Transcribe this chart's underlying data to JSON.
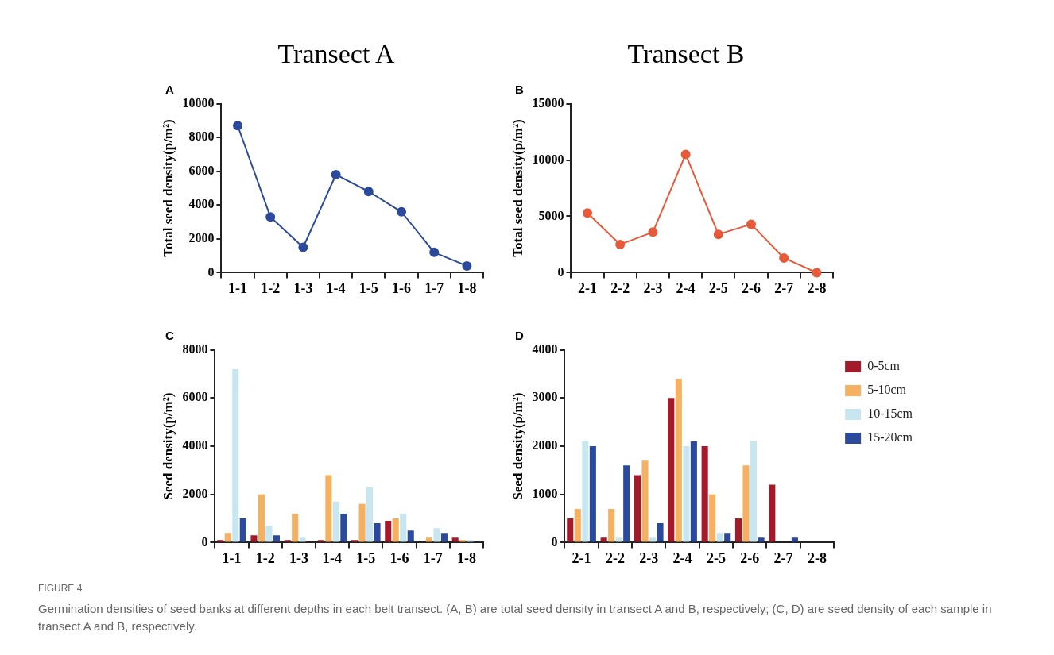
{
  "chart_data": [
    {
      "type": "line",
      "title": "Transect A",
      "annotations": [
        "A"
      ],
      "ylabel": "Total seed density(p/m²)",
      "categories": [
        "1-1",
        "1-2",
        "1-3",
        "1-4",
        "1-5",
        "1-6",
        "1-7",
        "1-8"
      ],
      "series": [
        {
          "color": "#2b4a9b",
          "values": [
            8700,
            3300,
            1500,
            5800,
            4800,
            3600,
            1200,
            400
          ]
        }
      ],
      "ylim": [
        0,
        10000
      ],
      "yticks": [
        0,
        2000,
        4000,
        6000,
        8000,
        10000
      ],
      "marker": "circle",
      "legend": false
    },
    {
      "type": "line",
      "title": "Transect B",
      "annotations": [
        "B"
      ],
      "ylabel": "Total seed density(p/m²)",
      "categories": [
        "2-1",
        "2-2",
        "2-3",
        "2-4",
        "2-5",
        "2-6",
        "2-7",
        "2-8"
      ],
      "series": [
        {
          "color": "#e8593a",
          "values": [
            5300,
            2500,
            3600,
            10500,
            3400,
            4300,
            1300,
            0
          ]
        }
      ],
      "ylim": [
        0,
        15000
      ],
      "yticks": [
        0,
        5000,
        10000,
        15000
      ],
      "marker": "circle",
      "legend": false
    },
    {
      "type": "bar",
      "annotations": [
        "C"
      ],
      "ylabel": "Seed density(p/m²)",
      "categories": [
        "1-1",
        "1-2",
        "1-3",
        "1-4",
        "1-5",
        "1-6",
        "1-7",
        "1-8"
      ],
      "series": [
        {
          "color": "#a31a2a",
          "values": [
            100,
            300,
            100,
            100,
            100,
            900,
            0,
            200
          ]
        },
        {
          "color": "#f5b061",
          "values": [
            400,
            2000,
            1200,
            2800,
            1600,
            1000,
            200,
            100
          ]
        },
        {
          "color": "#c8e6f0",
          "values": [
            7200,
            700,
            200,
            1700,
            2300,
            1200,
            600,
            100
          ]
        },
        {
          "color": "#2b4a9b",
          "values": [
            1000,
            300,
            0,
            1200,
            800,
            500,
            400,
            0
          ]
        }
      ],
      "ylim": [
        0,
        8000
      ],
      "yticks": [
        0,
        2000,
        4000,
        6000,
        8000
      ],
      "legend": false
    },
    {
      "type": "bar",
      "annotations": [
        "D",
        "FIGURE 4",
        "Germination densities of seed banks at different depths in each belt transect. (A, B) are total seed density in transect A and B, respectively; (C, D) are seed density of each sample in transect A and B, respectively."
      ],
      "ylabel": "Seed density(p/m²)",
      "categories": [
        "2-1",
        "2-2",
        "2-3",
        "2-4",
        "2-5",
        "2-6",
        "2-7",
        "2-8"
      ],
      "series": [
        {
          "name": "0-5cm",
          "color": "#a31a2a",
          "values": [
            500,
            100,
            1400,
            3000,
            2000,
            500,
            1200,
            0
          ]
        },
        {
          "name": "5-10cm",
          "color": "#f5b061",
          "values": [
            700,
            700,
            1700,
            3400,
            1000,
            1600,
            0,
            0
          ]
        },
        {
          "name": "10-15cm",
          "color": "#c8e6f0",
          "values": [
            2100,
            100,
            100,
            2000,
            200,
            2100,
            0,
            0
          ]
        },
        {
          "name": "15-20cm",
          "color": "#2b4a9b",
          "values": [
            2000,
            1600,
            400,
            2100,
            200,
            100,
            100,
            0
          ]
        }
      ],
      "ylim": [
        0,
        4000
      ],
      "yticks": [
        0,
        1000,
        2000,
        3000,
        4000
      ],
      "legend": "right"
    }
  ]
}
